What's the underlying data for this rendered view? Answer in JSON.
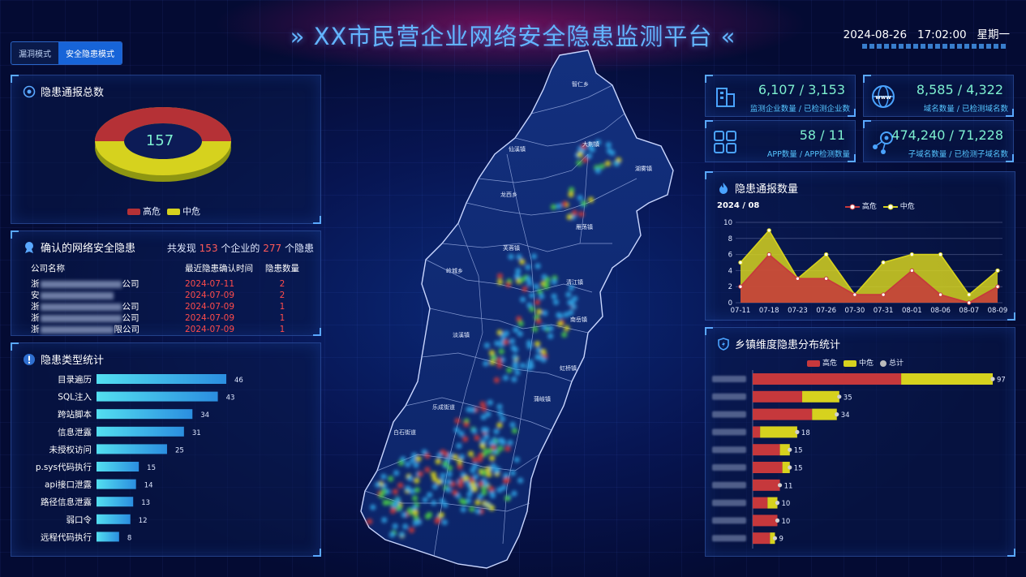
{
  "header": {
    "title": "» XX市民营企业网络安全隐患监测平台 «",
    "date": "2024-08-26",
    "time": "17:02:00",
    "weekday": "星期一"
  },
  "modes": [
    {
      "label": "漏洞模式",
      "active": false
    },
    {
      "label": "安全隐患模式",
      "active": true
    }
  ],
  "colors": {
    "high": "#c6383c",
    "mid": "#d6d21e",
    "accent": "#5aa8ff",
    "kpi_value": "#7df0d0"
  },
  "total_panel": {
    "title": "隐患通报总数",
    "total": "157",
    "legend": [
      "高危",
      "中危"
    ]
  },
  "confirmed": {
    "title": "确认的网络安全隐患",
    "found_prefix": "共发现",
    "enterprises": "153",
    "found_mid": "个企业的",
    "hazards": "277",
    "found_suffix": "个隐患",
    "headers": [
      "公司名称",
      "最近隐患确认时间",
      "隐患数量"
    ],
    "rows": [
      {
        "pre": "浙",
        "post": "公司",
        "date": "2024-07-11",
        "count": "2"
      },
      {
        "pre": "安",
        "post": "",
        "date": "2024-07-09",
        "count": "2"
      },
      {
        "pre": "浙",
        "post": "公司",
        "date": "2024-07-09",
        "count": "1"
      },
      {
        "pre": "浙",
        "post": "公司",
        "date": "2024-07-09",
        "count": "1"
      },
      {
        "pre": "浙",
        "post": "限公司",
        "date": "2024-07-09",
        "count": "1"
      }
    ]
  },
  "type_stats": {
    "title": "隐患类型统计",
    "chart_data": {
      "type": "bar",
      "categories": [
        "目录遍历",
        "SQL注入",
        "跨站脚本",
        "信息泄露",
        "未授权访问",
        "p.sys代码执行",
        "api接口泄露",
        "路径信息泄露",
        "弱口令",
        "远程代码执行"
      ],
      "values": [
        46,
        43,
        34,
        31,
        25,
        15,
        14,
        13,
        12,
        8
      ]
    }
  },
  "kpis": [
    {
      "value": "6,107 / 3,153",
      "label": "监测企业数量 / 已检测企业数",
      "icon": "building-icon"
    },
    {
      "value": "8,585 / 4,322",
      "label": "域名数量 / 已检测域名数",
      "icon": "globe-www-icon"
    },
    {
      "value": "58 / 11",
      "label": "APP数量 / APP检测数量",
      "icon": "app-grid-icon"
    },
    {
      "value": "474,240 / 71,228",
      "label": "子域名数量 / 已检测子域名数",
      "icon": "network-icon"
    }
  ],
  "trend": {
    "title": "隐患通报数量",
    "period": "2024 / 08",
    "chart_data": {
      "type": "area",
      "x": [
        "07-11",
        "07-18",
        "07-23",
        "07-26",
        "07-30",
        "07-31",
        "08-01",
        "08-06",
        "08-07",
        "08-09"
      ],
      "ylim": [
        0,
        10
      ],
      "yticks": [
        0,
        2,
        4,
        6,
        8,
        10
      ],
      "series": [
        {
          "name": "高危",
          "values": [
            2,
            6,
            3,
            3,
            1,
            1,
            4,
            1,
            0,
            2
          ]
        },
        {
          "name": "中危",
          "values": [
            5,
            9,
            3,
            6,
            1,
            5,
            6,
            6,
            1,
            4
          ]
        }
      ]
    }
  },
  "town_stats": {
    "title": "乡镇维度隐患分布统计",
    "legend": [
      "高危",
      "中危",
      "总计"
    ],
    "chart_data": {
      "type": "bar",
      "stacked": true,
      "categories": [
        "",
        "",
        "",
        "",
        "",
        "",
        "",
        "",
        "",
        ""
      ],
      "series": [
        {
          "name": "高危",
          "values": [
            60,
            20,
            24,
            3,
            11,
            12,
            11,
            6,
            10,
            7
          ]
        },
        {
          "name": "中危",
          "values": [
            37,
            15,
            10,
            15,
            4,
            3,
            0,
            4,
            0,
            2
          ]
        }
      ],
      "totals": [
        97,
        35,
        34,
        18,
        15,
        15,
        11,
        10,
        10,
        9
      ]
    }
  },
  "map": {
    "towns": [
      "智仁乡",
      "大荆镇",
      "仙溪镇",
      "湖雾镇",
      "龙西乡",
      "雁荡镇",
      "芙蓉镇",
      "岭城乡",
      "清江镇",
      "南岳镇",
      "淡溪镇",
      "虹桥镇",
      "蒲岐镇",
      "乐成街道",
      "白石街道"
    ]
  }
}
